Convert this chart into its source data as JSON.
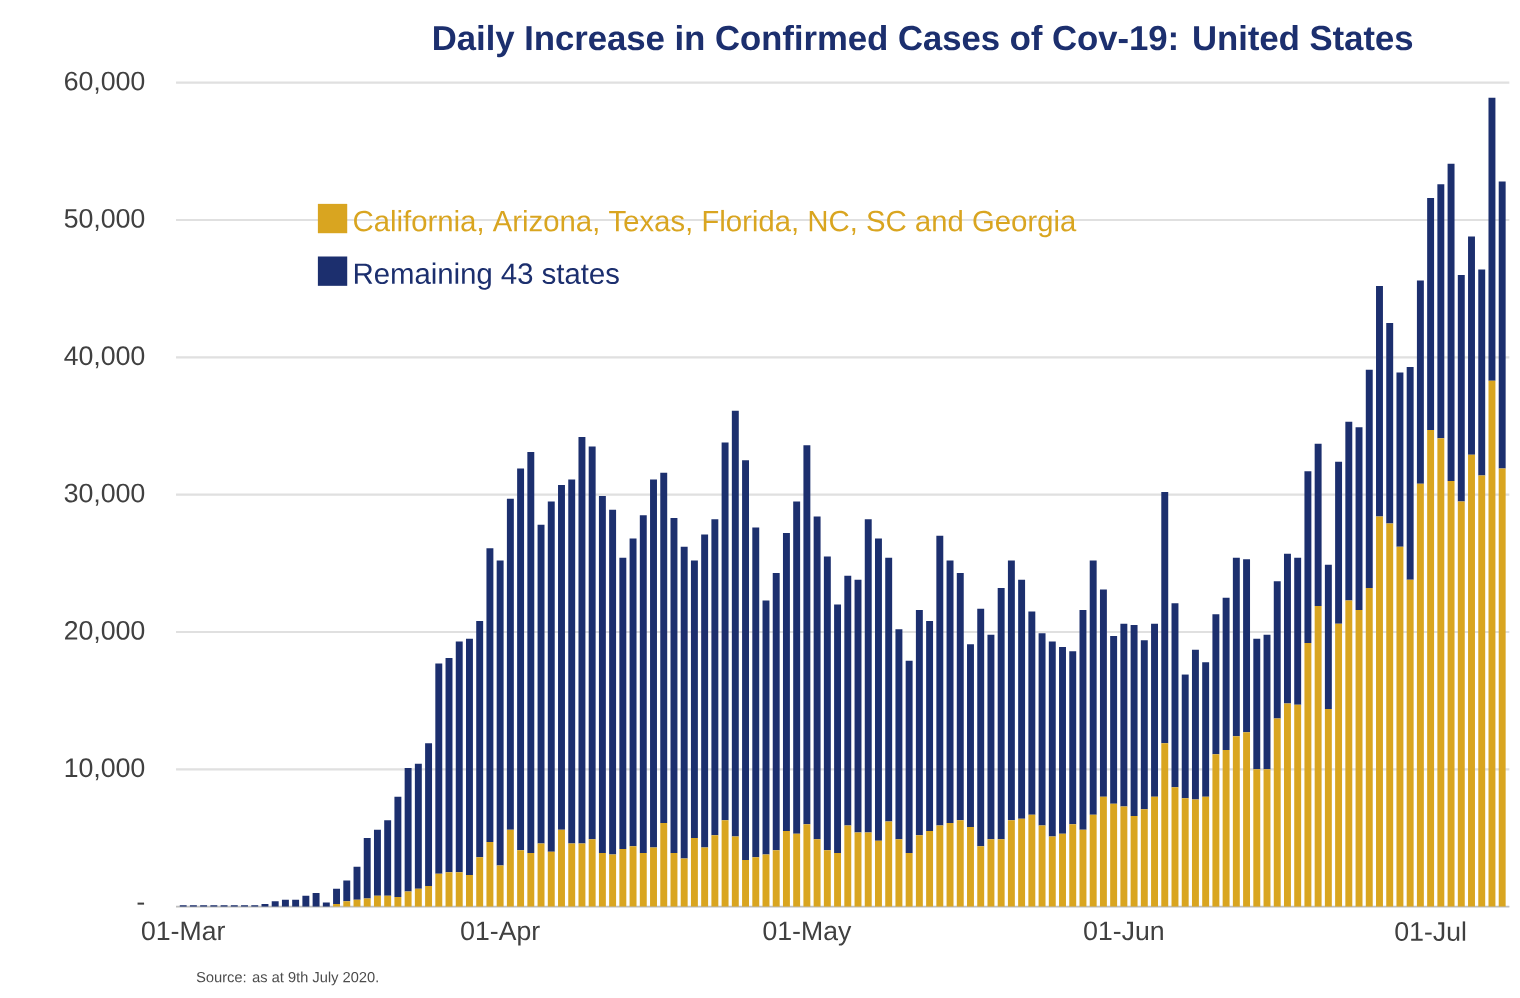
{
  "chart_data": {
    "type": "bar",
    "stacked": true,
    "title": "Daily Increase in Confirmed Cases of Cov-19: United States",
    "categories": [
      "01-Mar",
      null,
      null,
      null,
      null,
      null,
      null,
      null,
      null,
      null,
      null,
      null,
      null,
      null,
      null,
      null,
      null,
      null,
      null,
      null,
      null,
      null,
      null,
      null,
      null,
      null,
      null,
      null,
      null,
      null,
      null,
      "01-Apr",
      null,
      null,
      null,
      null,
      null,
      null,
      null,
      null,
      null,
      null,
      null,
      null,
      null,
      null,
      null,
      null,
      null,
      null,
      null,
      null,
      null,
      null,
      null,
      null,
      null,
      null,
      null,
      null,
      null,
      "01-May",
      null,
      null,
      null,
      null,
      null,
      null,
      null,
      null,
      null,
      null,
      null,
      null,
      null,
      null,
      null,
      null,
      null,
      null,
      null,
      null,
      null,
      null,
      null,
      null,
      null,
      null,
      null,
      null,
      null,
      null,
      "01-Jun",
      null,
      null,
      null,
      null,
      null,
      null,
      null,
      null,
      null,
      null,
      null,
      null,
      null,
      null,
      null,
      null,
      null,
      null,
      null,
      null,
      null,
      null,
      null,
      null,
      null,
      null,
      null,
      null,
      null,
      "01-Jul",
      null,
      null,
      null,
      null,
      null,
      null,
      null
    ],
    "series": [
      {
        "name": "California, Arizona, Texas, Florida, NC, SC and Georgia",
        "color": "#d9a520",
        "values": [
          0,
          0,
          0,
          0,
          0,
          0,
          0,
          0,
          0,
          0,
          0,
          0,
          0,
          0,
          0,
          200,
          400,
          500,
          600,
          800,
          800,
          700,
          1100,
          1300,
          1500,
          2400,
          2500,
          2500,
          2300,
          3600,
          4700,
          3000,
          5600,
          4100,
          3900,
          4600,
          4000,
          5600,
          4600,
          4600,
          4900,
          3900,
          3800,
          4200,
          4400,
          3900,
          4300,
          6100,
          3900,
          3500,
          5000,
          4300,
          5200,
          6300,
          5100,
          3400,
          3600,
          3800,
          4100,
          5500,
          5300,
          6000,
          4900,
          4100,
          3900,
          5900,
          5400,
          5400,
          4800,
          6200,
          4900,
          3900,
          5200,
          5500,
          5900,
          6100,
          6300,
          5800,
          4400,
          4900,
          4900,
          6300,
          6400,
          6700,
          5900,
          5100,
          5300,
          6000,
          5600,
          6700,
          8000,
          7500,
          7300,
          6600,
          7100,
          8000,
          11900,
          8700,
          7900,
          7800,
          8000,
          11100,
          11400,
          12400,
          12700,
          10000,
          10000,
          13700,
          14800,
          14700,
          19200,
          21900,
          14400,
          20600,
          22300,
          21600,
          23200,
          28400,
          27900,
          26200,
          23800,
          30800,
          34700,
          34100,
          31000,
          29500,
          32900,
          31400,
          38300,
          31900
        ]
      },
      {
        "name": "Remaining 43 states",
        "color": "#1c2f6e",
        "values": [
          100,
          100,
          100,
          100,
          100,
          100,
          100,
          100,
          200,
          400,
          500,
          500,
          800,
          1000,
          300,
          1100,
          1500,
          2400,
          4400,
          4800,
          5500,
          7300,
          9000,
          9100,
          10400,
          15300,
          15600,
          16800,
          17200,
          17200,
          21400,
          22200,
          24100,
          27800,
          29200,
          23200,
          25500,
          25100,
          26500,
          29600,
          28600,
          26000,
          25100,
          21200,
          22400,
          24600,
          26800,
          25500,
          24400,
          22700,
          20200,
          22800,
          23000,
          27500,
          31000,
          29100,
          24000,
          18500,
          20200,
          21700,
          24200,
          27600,
          23500,
          21400,
          18100,
          18200,
          18400,
          22800,
          22000,
          19200,
          15300,
          14000,
          16400,
          15300,
          21100,
          19100,
          18000,
          13300,
          17300,
          14900,
          18300,
          18900,
          17400,
          14800,
          14000,
          14200,
          13600,
          12600,
          16000,
          18500,
          15100,
          12200,
          13300,
          13900,
          12300,
          12600,
          18300,
          13400,
          9000,
          10900,
          9800,
          10200,
          11100,
          13000,
          12600,
          9500,
          9800,
          10000,
          10900,
          10700,
          12500,
          11800,
          10500,
          11800,
          13000,
          13300,
          15900,
          16800,
          14600,
          12700,
          15500,
          14800,
          16900,
          18500,
          23100,
          16500,
          15900,
          15000,
          20600,
          20900
        ]
      }
    ],
    "ylim": [
      0,
      60000
    ],
    "yticks": [
      {
        "value": 0,
        "label": "-"
      },
      {
        "value": 10000,
        "label": "10,000"
      },
      {
        "value": 20000,
        "label": "20,000"
      },
      {
        "value": 30000,
        "label": "30,000"
      },
      {
        "value": 40000,
        "label": "40,000"
      },
      {
        "value": 50000,
        "label": "50,000"
      },
      {
        "value": 60000,
        "label": "60,000"
      }
    ],
    "grid": "y",
    "legend": "top left",
    "annotations": [
      "Source: as at 9th July 2020."
    ]
  }
}
